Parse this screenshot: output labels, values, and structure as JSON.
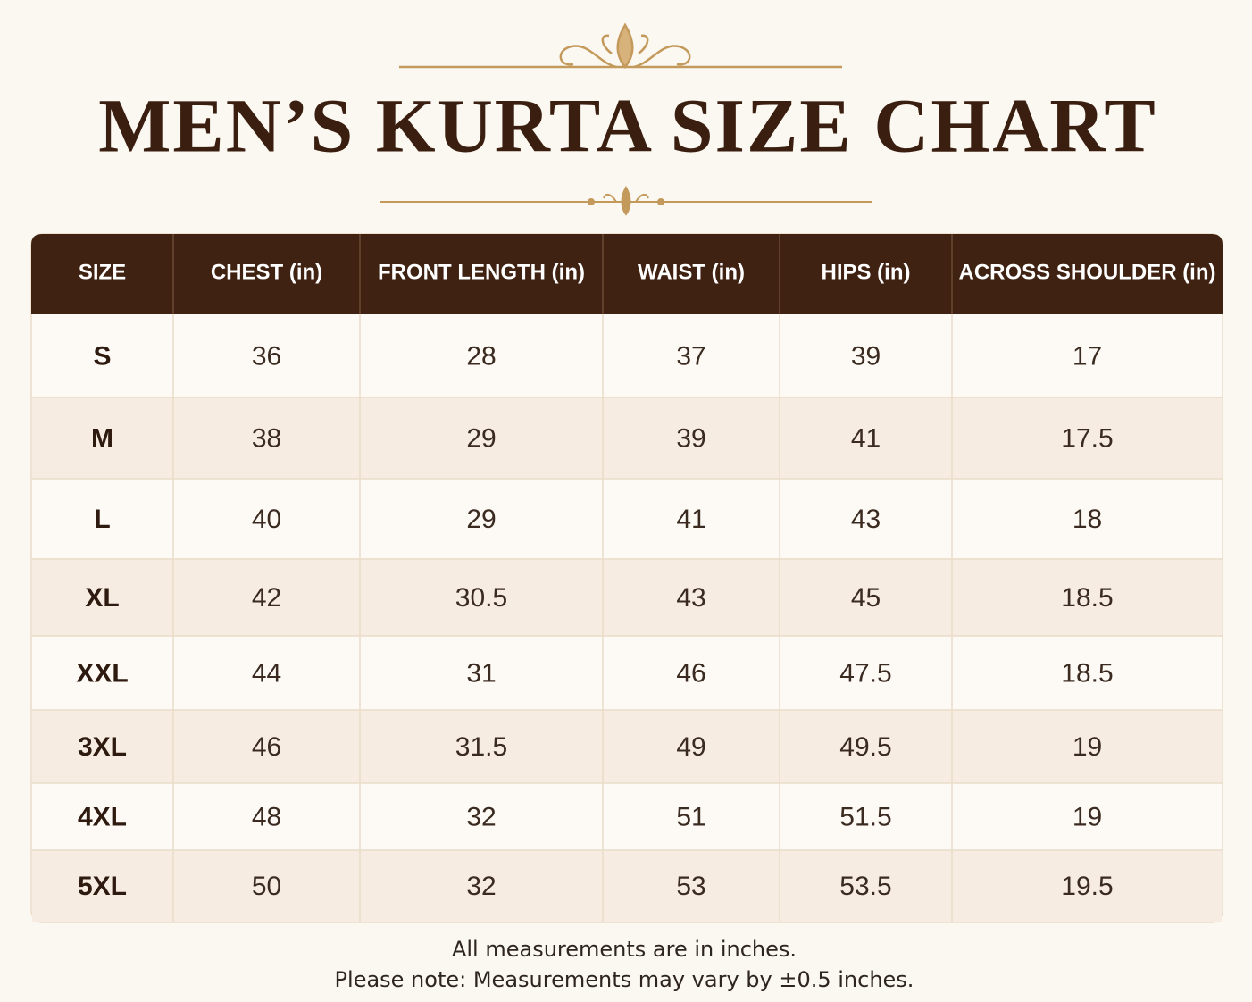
{
  "header": {
    "title": "MEN’S KURTA SIZE CHART"
  },
  "table": {
    "columns": [
      "SIZE",
      "CHEST (in)",
      "FRONT LENGTH (in)",
      "WAIST (in)",
      "HIPS (in)",
      "ACROSS SHOULDER (in)"
    ],
    "rows": [
      [
        "S",
        36,
        28,
        37,
        39,
        17
      ],
      [
        "M",
        38,
        29,
        39,
        41,
        17.5
      ],
      [
        "L",
        40,
        29,
        41,
        43,
        18
      ],
      [
        "XL",
        42,
        30.5,
        43,
        45,
        18.5
      ],
      [
        "XXL",
        44,
        31,
        46,
        47.5,
        18.5
      ],
      [
        "3XL",
        46,
        31.5,
        49,
        49.5,
        19
      ],
      [
        "4XL",
        48,
        32,
        51,
        51.5,
        19
      ],
      [
        "5XL",
        50,
        32,
        53,
        53.5,
        19.5
      ]
    ]
  },
  "notes": [
    "All measurements are in inches.",
    "Please note: Measurements may vary by ±0.5 inches."
  ]
}
